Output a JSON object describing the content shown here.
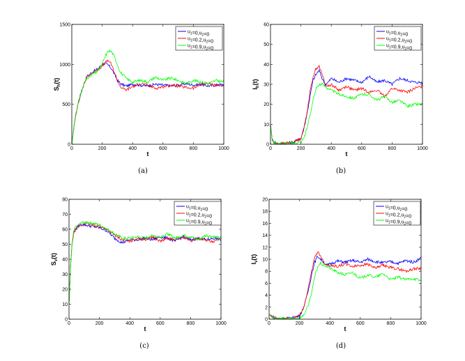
{
  "chart_data": [
    {
      "type": "line",
      "caption": "(a)",
      "xlabel": "t",
      "ylabel": "S_h(t)",
      "xlim": [
        0,
        1000
      ],
      "ylim": [
        0,
        1500
      ],
      "xticks": [
        0,
        200,
        400,
        600,
        800,
        1000
      ],
      "yticks": [
        0,
        500,
        1000,
        1500
      ],
      "legend_position": "top-right",
      "legend": [
        "u1=0,u2=0",
        "u1=0.2,u2=0",
        "u1=0.9,u2=0"
      ],
      "series": [
        {
          "name": "u1=0,u2=0",
          "color": "#0000ff",
          "x": [
            0,
            20,
            40,
            60,
            80,
            100,
            120,
            140,
            160,
            180,
            200,
            220,
            240,
            260,
            280,
            300,
            320,
            340,
            360,
            380,
            400,
            450,
            500,
            550,
            600,
            650,
            700,
            750,
            800,
            850,
            900,
            950,
            1000
          ],
          "y": [
            0,
            300,
            500,
            640,
            760,
            850,
            880,
            910,
            930,
            960,
            1000,
            1010,
            990,
            950,
            880,
            800,
            760,
            740,
            730,
            740,
            750,
            740,
            730,
            750,
            740,
            730,
            740,
            760,
            740,
            750,
            730,
            740,
            750
          ]
        },
        {
          "name": "u1=0.2,u2=0",
          "color": "#ff0000",
          "x": [
            0,
            20,
            40,
            60,
            80,
            100,
            120,
            140,
            160,
            180,
            200,
            220,
            240,
            260,
            280,
            300,
            320,
            340,
            360,
            380,
            400,
            450,
            500,
            550,
            600,
            650,
            700,
            750,
            800,
            850,
            900,
            950,
            1000
          ],
          "y": [
            0,
            300,
            500,
            640,
            750,
            840,
            870,
            900,
            920,
            950,
            980,
            1020,
            1050,
            1000,
            900,
            800,
            720,
            690,
            680,
            700,
            720,
            760,
            740,
            700,
            720,
            740,
            730,
            710,
            700,
            750,
            760,
            740,
            730
          ]
        },
        {
          "name": "u1=0.9,u2=0",
          "color": "#00ff00",
          "x": [
            0,
            20,
            40,
            60,
            80,
            100,
            120,
            140,
            160,
            180,
            200,
            220,
            240,
            260,
            280,
            300,
            320,
            340,
            360,
            380,
            400,
            450,
            500,
            550,
            600,
            650,
            700,
            750,
            800,
            850,
            900,
            950,
            1000
          ],
          "y": [
            0,
            300,
            500,
            640,
            760,
            830,
            850,
            880,
            900,
            940,
            1000,
            1100,
            1170,
            1160,
            1100,
            1000,
            900,
            860,
            820,
            800,
            780,
            800,
            780,
            840,
            800,
            830,
            800,
            760,
            800,
            780,
            760,
            800,
            780
          ]
        }
      ]
    },
    {
      "type": "line",
      "caption": "(b)",
      "xlabel": "t",
      "ylabel": "I_h(t)",
      "xlim": [
        0,
        1000
      ],
      "ylim": [
        0,
        60
      ],
      "xticks": [
        0,
        200,
        400,
        600,
        800,
        1000
      ],
      "yticks": [
        0,
        10,
        20,
        30,
        40,
        50,
        60
      ],
      "legend_position": "top-right",
      "legend": [
        "u1=0,u2=0",
        "u1=0.2,u2=0",
        "u1=0.9,u2=0"
      ],
      "series": [
        {
          "name": "u1=0,u2=0",
          "color": "#0000ff",
          "x": [
            0,
            10,
            20,
            40,
            60,
            100,
            150,
            200,
            220,
            240,
            260,
            280,
            300,
            320,
            340,
            360,
            380,
            400,
            450,
            500,
            550,
            600,
            650,
            700,
            750,
            800,
            850,
            900,
            950,
            1000
          ],
          "y": [
            10,
            3,
            1,
            0.5,
            0.3,
            0.5,
            1,
            3,
            8,
            15,
            24,
            32,
            35,
            37,
            33,
            30,
            31,
            33,
            31,
            33,
            32,
            31,
            34,
            31,
            32,
            30,
            33,
            32,
            31,
            31
          ]
        },
        {
          "name": "u1=0.2,u2=0",
          "color": "#ff0000",
          "x": [
            0,
            10,
            20,
            40,
            60,
            100,
            150,
            200,
            220,
            240,
            260,
            280,
            300,
            320,
            340,
            360,
            380,
            400,
            450,
            500,
            550,
            600,
            650,
            700,
            750,
            800,
            850,
            900,
            950,
            1000
          ],
          "y": [
            10,
            3,
            1,
            0.5,
            0.3,
            0.5,
            1,
            3,
            8,
            16,
            26,
            34,
            38,
            39,
            35,
            30,
            29,
            30,
            27,
            29,
            27,
            28,
            26,
            27,
            24,
            28,
            27,
            26,
            28,
            29
          ]
        },
        {
          "name": "u1=0.9,u2=0",
          "color": "#00ff00",
          "x": [
            0,
            10,
            20,
            40,
            60,
            100,
            150,
            200,
            220,
            240,
            260,
            280,
            300,
            320,
            340,
            360,
            380,
            400,
            450,
            500,
            550,
            600,
            650,
            700,
            750,
            800,
            850,
            900,
            950,
            1000
          ],
          "y": [
            10,
            3,
            1,
            0.5,
            0.3,
            0.3,
            0.5,
            1,
            3,
            8,
            15,
            22,
            28,
            30,
            30,
            29,
            28,
            27,
            25,
            24,
            23,
            25,
            25,
            22,
            24,
            21,
            22,
            19,
            20,
            20
          ]
        }
      ]
    },
    {
      "type": "line",
      "caption": "(c)",
      "xlabel": "t",
      "ylabel": "S_v(t)",
      "xlim": [
        0,
        1000
      ],
      "ylim": [
        0,
        80
      ],
      "xticks": [
        0,
        200,
        400,
        600,
        800,
        1000
      ],
      "yticks": [
        0,
        10,
        20,
        30,
        40,
        50,
        60,
        70,
        80
      ],
      "legend_position": "top-right",
      "legend": [
        "u1=0,u2=0",
        "u1=0.2,u2=0",
        "u1=0.9,u2=0"
      ],
      "series": [
        {
          "name": "u1=0,u2=0",
          "color": "#0000ff",
          "x": [
            0,
            10,
            20,
            30,
            40,
            60,
            80,
            100,
            150,
            200,
            250,
            300,
            350,
            400,
            450,
            500,
            550,
            600,
            650,
            700,
            750,
            800,
            850,
            900,
            950,
            1000
          ],
          "y": [
            10,
            35,
            50,
            58,
            60,
            62,
            63,
            63,
            62,
            61,
            59,
            54,
            51,
            53,
            53,
            54,
            53,
            55,
            54,
            52,
            55,
            53,
            54,
            53,
            54,
            53
          ]
        },
        {
          "name": "u1=0.2,u2=0",
          "color": "#ff0000",
          "x": [
            0,
            10,
            20,
            30,
            40,
            60,
            80,
            100,
            150,
            200,
            250,
            300,
            350,
            400,
            450,
            500,
            550,
            600,
            650,
            700,
            750,
            800,
            850,
            900,
            950,
            1000
          ],
          "y": [
            10,
            35,
            50,
            57,
            59,
            62,
            63,
            64,
            63,
            62,
            60,
            56,
            53,
            52,
            54,
            53,
            55,
            52,
            54,
            53,
            55,
            52,
            54,
            53,
            51,
            55
          ]
        },
        {
          "name": "u1=0.9,u2=0",
          "color": "#00ff00",
          "x": [
            0,
            10,
            20,
            30,
            40,
            60,
            80,
            100,
            150,
            200,
            250,
            300,
            350,
            400,
            450,
            500,
            550,
            600,
            650,
            700,
            750,
            800,
            850,
            900,
            950,
            1000
          ],
          "y": [
            10,
            35,
            50,
            58,
            61,
            63,
            64,
            65,
            64,
            63,
            60,
            57,
            54,
            54,
            55,
            54,
            56,
            55,
            57,
            54,
            56,
            55,
            53,
            56,
            55,
            54
          ]
        }
      ]
    },
    {
      "type": "line",
      "caption": "(d)",
      "xlabel": "t",
      "ylabel": "I_v(t)",
      "xlim": [
        0,
        1000
      ],
      "ylim": [
        0,
        20
      ],
      "xticks": [
        0,
        200,
        400,
        600,
        800,
        1000
      ],
      "yticks": [
        0,
        2,
        4,
        6,
        8,
        10,
        12,
        14,
        16,
        18,
        20
      ],
      "legend_position": "top-right",
      "legend": [
        "u1=0,u2=0",
        "u1=0.2,u2=0",
        "u1=0.9,u2=0"
      ],
      "series": [
        {
          "name": "u1=0,u2=0",
          "color": "#0000ff",
          "x": [
            0,
            20,
            40,
            60,
            100,
            150,
            200,
            220,
            240,
            260,
            280,
            300,
            320,
            340,
            360,
            380,
            400,
            450,
            500,
            550,
            600,
            650,
            700,
            750,
            800,
            850,
            900,
            950,
            1000
          ],
          "y": [
            0.8,
            0.4,
            0.2,
            0.1,
            0.1,
            0.2,
            0.6,
            1.5,
            3,
            5,
            7.5,
            9.5,
            10.5,
            10,
            9.5,
            9,
            9.2,
            9.7,
            9.5,
            9.8,
            9.5,
            10,
            9.6,
            9.4,
            9.6,
            9.3,
            9.8,
            9.5,
            10.2
          ]
        },
        {
          "name": "u1=0.2,u2=0",
          "color": "#ff0000",
          "x": [
            0,
            20,
            40,
            60,
            100,
            150,
            200,
            220,
            240,
            260,
            280,
            300,
            320,
            340,
            360,
            380,
            400,
            450,
            500,
            550,
            600,
            650,
            700,
            750,
            800,
            850,
            900,
            950,
            1000
          ],
          "y": [
            0.8,
            0.4,
            0.2,
            0.1,
            0.1,
            0.2,
            0.6,
            1.5,
            3.2,
            5.5,
            8,
            10.2,
            11.3,
            10.5,
            9.5,
            9,
            9,
            8.8,
            9.2,
            8.8,
            9,
            9.2,
            8.5,
            9,
            8.6,
            8.4,
            8,
            8.4,
            8.5
          ]
        },
        {
          "name": "u1=0.9,u2=0",
          "color": "#00ff00",
          "x": [
            0,
            20,
            40,
            60,
            100,
            150,
            200,
            220,
            240,
            260,
            280,
            300,
            320,
            340,
            360,
            380,
            400,
            450,
            500,
            550,
            600,
            650,
            700,
            750,
            800,
            850,
            900,
            950,
            1000
          ],
          "y": [
            0.8,
            0.4,
            0.2,
            0.1,
            0.1,
            0.1,
            0.2,
            0.5,
            1.2,
            2.5,
            4.5,
            7,
            8.8,
            9.3,
            9,
            8.8,
            8.5,
            7.8,
            7.4,
            7.8,
            6.8,
            7.4,
            7,
            7.6,
            6.6,
            7,
            6.6,
            6.8,
            6.4
          ]
        }
      ]
    }
  ]
}
